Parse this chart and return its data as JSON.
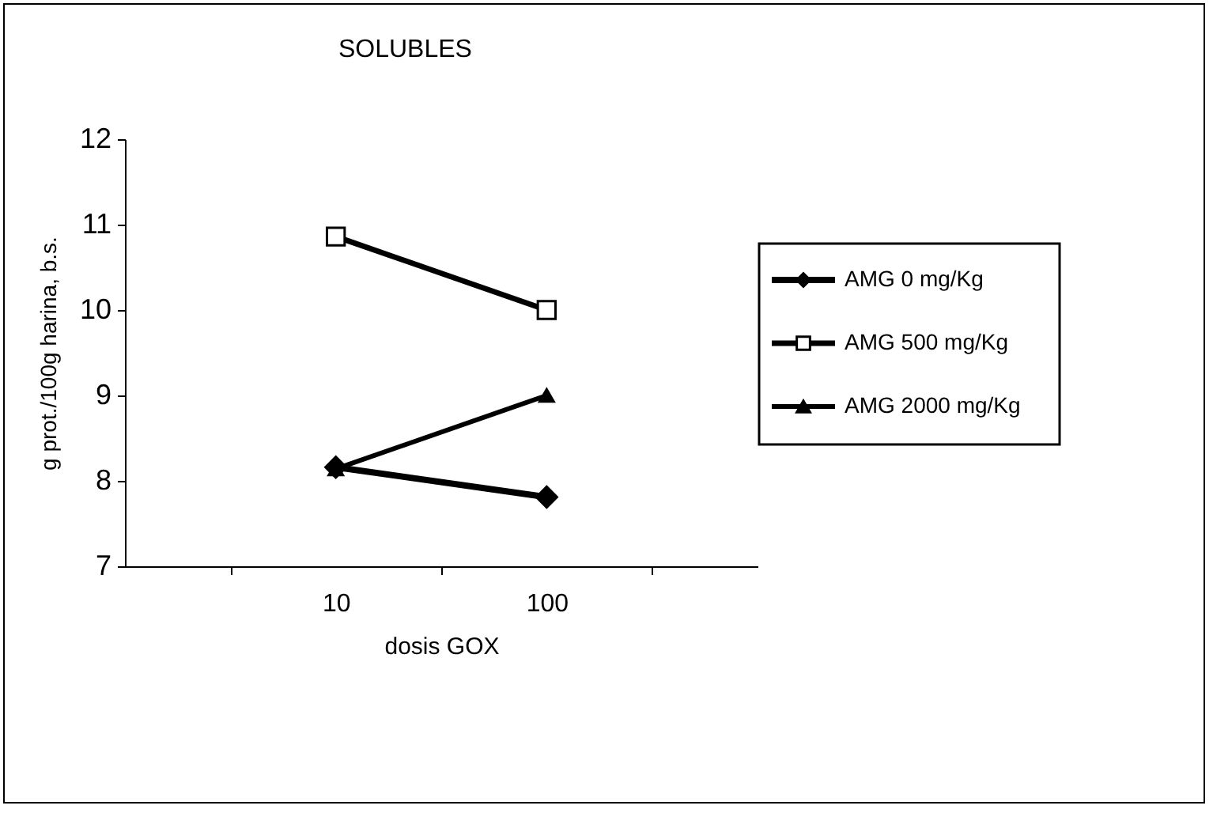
{
  "chart_data": {
    "type": "line",
    "title": "SOLUBLES",
    "xlabel": "dosis GOX",
    "ylabel": "g prot./100g harina, b.s.",
    "categories": [
      "10",
      "100"
    ],
    "series": [
      {
        "name": "AMG 0 mg/Kg",
        "color": "#000000",
        "marker": "diamond",
        "values": [
          8.16,
          7.81
        ]
      },
      {
        "name": "AMG 500 mg/Kg",
        "color": "#000000",
        "marker": "square",
        "values": [
          10.86,
          10.0
        ]
      },
      {
        "name": "AMG 2000 mg/Kg",
        "color": "#000000",
        "marker": "triangle",
        "values": [
          8.14,
          9.0
        ]
      }
    ],
    "ylim": [
      7,
      12
    ],
    "yticks": [
      7,
      8,
      9,
      10,
      11,
      12
    ],
    "grid": false,
    "legend": "right",
    "line_style": "solid"
  }
}
